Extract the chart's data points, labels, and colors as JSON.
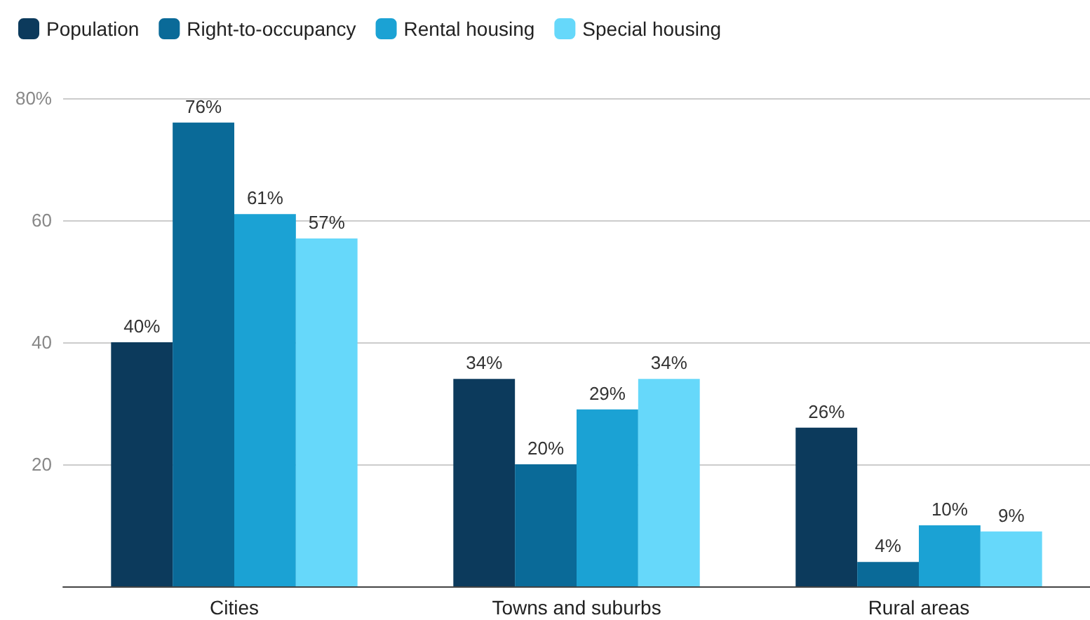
{
  "chart_data": {
    "type": "bar",
    "categories": [
      "Cities",
      "Towns and suburbs",
      "Rural areas"
    ],
    "series": [
      {
        "name": "Population",
        "color": "#0c3a5c",
        "values": [
          40,
          34,
          26
        ],
        "value_labels": [
          "40%",
          "34%",
          "26%"
        ]
      },
      {
        "name": "Right-to-occupancy",
        "color": "#0a6a98",
        "values": [
          76,
          20,
          4
        ],
        "value_labels": [
          "76%",
          "20%",
          "4%"
        ]
      },
      {
        "name": "Rental housing",
        "color": "#1ba2d4",
        "values": [
          61,
          29,
          10
        ],
        "value_labels": [
          "61%",
          "29%",
          "10%"
        ]
      },
      {
        "name": "Special housing",
        "color": "#66d8fa",
        "values": [
          57,
          34,
          9
        ],
        "value_labels": [
          "57%",
          "34%",
          "9%"
        ]
      }
    ],
    "ylim": [
      0,
      80
    ],
    "yticks": [
      {
        "value": 0,
        "label": null
      },
      20,
      40,
      60,
      {
        "value": 80,
        "label": "80%"
      }
    ],
    "grid": "y",
    "legend": "top left"
  }
}
